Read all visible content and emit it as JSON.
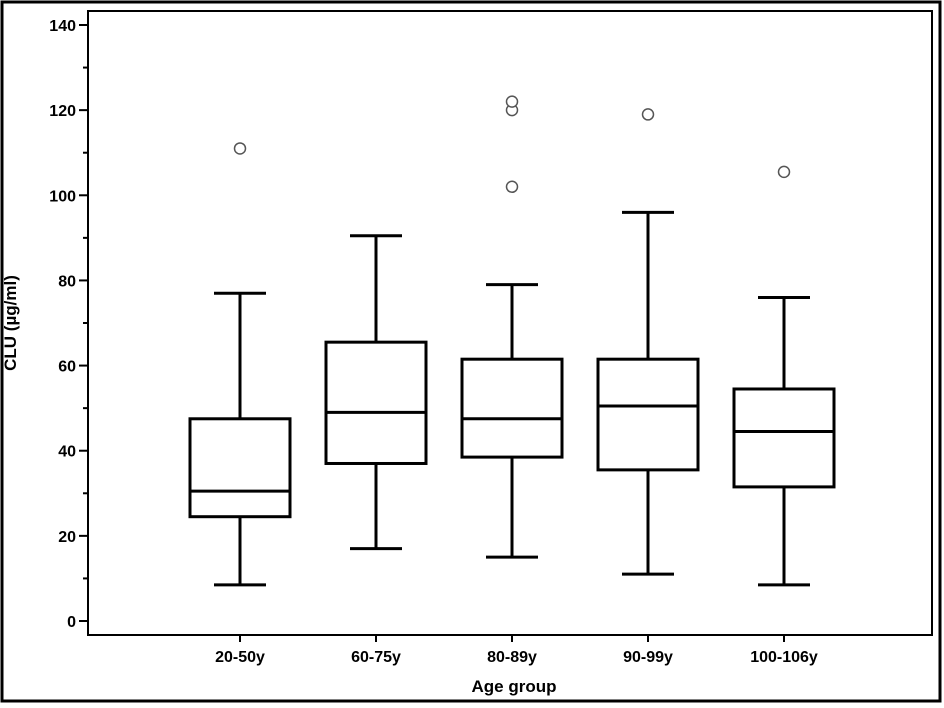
{
  "chart_data": {
    "type": "boxplot",
    "title": "",
    "xlabel": "Age group",
    "ylabel": "CLU (µg/ml)",
    "ylim": [
      0,
      140
    ],
    "yticks": [
      0,
      20,
      40,
      60,
      80,
      100,
      120,
      140
    ],
    "y_minor_step": 10,
    "grid": false,
    "legend": "none",
    "categories": [
      "20-50y",
      "60-75y",
      "80-89y",
      "90-99y",
      "100-106y"
    ],
    "boxes": [
      {
        "category": "20-50y",
        "whisker_low": 8.5,
        "q1": 24.5,
        "median": 30.5,
        "q3": 47.5,
        "whisker_high": 77,
        "outliers": [
          111
        ]
      },
      {
        "category": "60-75y",
        "whisker_low": 17,
        "q1": 37,
        "median": 49,
        "q3": 65.5,
        "whisker_high": 90.5,
        "outliers": []
      },
      {
        "category": "80-89y",
        "whisker_low": 15,
        "q1": 38.5,
        "median": 47.5,
        "q3": 61.5,
        "whisker_high": 79,
        "outliers": [
          102,
          120,
          122
        ]
      },
      {
        "category": "90-99y",
        "whisker_low": 11,
        "q1": 35.5,
        "median": 50.5,
        "q3": 61.5,
        "whisker_high": 96,
        "outliers": [
          119
        ]
      },
      {
        "category": "100-106y",
        "whisker_low": 8.5,
        "q1": 31.5,
        "median": 44.5,
        "q3": 54.5,
        "whisker_high": 76,
        "outliers": [
          105.5
        ]
      }
    ],
    "colors": {
      "box_stroke": "#000000",
      "box_fill": "#ffffff",
      "outlier_stroke": "#555555",
      "frame": "#000000"
    }
  }
}
